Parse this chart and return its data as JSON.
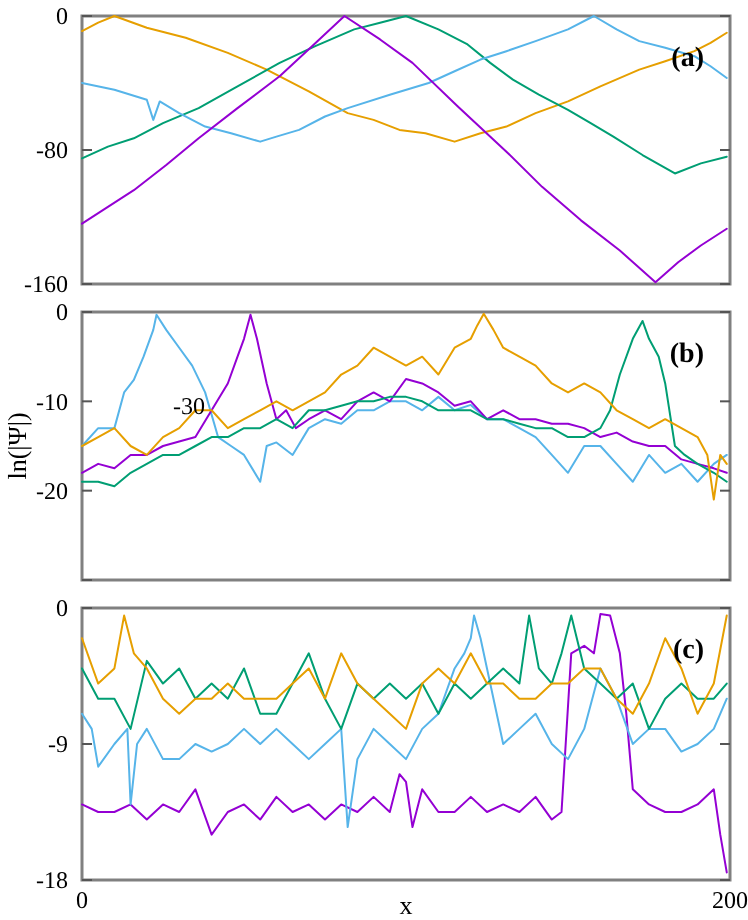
{
  "chart_data": [
    {
      "type": "line",
      "xlim": [
        0,
        200
      ],
      "ylim": [
        -160,
        0
      ],
      "yticks": [
        0,
        -80,
        -160
      ],
      "tick_labels": "y",
      "annotations": [
        "(a)"
      ],
      "series": [
        {
          "color": "#e69f00",
          "x": [
            0,
            5,
            10,
            20,
            32,
            45,
            57,
            70,
            82,
            90,
            98,
            106,
            115,
            123,
            131,
            140,
            150,
            160,
            172,
            180,
            189,
            194,
            199
          ],
          "values": [
            -9,
            -4,
            0,
            -7,
            -13,
            -22,
            -32,
            -45,
            -58,
            -62,
            -68,
            -70,
            -75,
            -70,
            -66,
            -58,
            -51,
            -42,
            -32,
            -27,
            -21,
            -16,
            -10
          ]
        },
        {
          "color": "#009e73",
          "x": [
            0,
            8,
            16,
            25,
            36,
            48,
            61,
            72,
            84,
            92,
            100,
            110,
            119,
            126,
            133,
            141,
            150,
            157,
            164,
            173,
            183,
            191,
            199
          ],
          "values": [
            -85,
            -78,
            -73,
            -64,
            -55,
            -42,
            -28,
            -18,
            -8,
            -4,
            0,
            -8,
            -17,
            -28,
            -38,
            -47,
            -56,
            -64,
            -72,
            -83,
            -94,
            -88,
            -84
          ]
        },
        {
          "color": "#56b4e9",
          "x": [
            0,
            10,
            20,
            22,
            24,
            30,
            38,
            46,
            55,
            60,
            67,
            75,
            82,
            95,
            107,
            115,
            123,
            131,
            140,
            150,
            158,
            165,
            172,
            180,
            189,
            194,
            199
          ],
          "values": [
            -40,
            -44,
            -50,
            -62,
            -51,
            -58,
            -66,
            -70,
            -75,
            -72,
            -68,
            -60,
            -55,
            -47,
            -40,
            -33,
            -26,
            -21,
            -15,
            -8,
            0,
            -8,
            -15,
            -19,
            -24,
            -30,
            -37
          ]
        },
        {
          "color": "#9400d3",
          "x": [
            0,
            8,
            16,
            26,
            36,
            48,
            61,
            71,
            81,
            92,
            102,
            116,
            131,
            142,
            154,
            166,
            177,
            184,
            191,
            199
          ],
          "values": [
            -124,
            -114,
            -104,
            -89,
            -73,
            -55,
            -36,
            -18,
            0,
            -14,
            -28,
            -54,
            -81,
            -102,
            -122,
            -140,
            -159,
            -147,
            -137,
            -127
          ]
        }
      ]
    },
    {
      "type": "line",
      "xlim": [
        0,
        200
      ],
      "ylim": [
        -30,
        0
      ],
      "yticks": [
        {
          "value": 0,
          "label": "0"
        },
        -10,
        -20,
        {
          "value": -30,
          "label": null
        }
      ],
      "tick_labels": "y",
      "ylabel": "ln(|Ψ|)",
      "annotations": [
        "(b)",
        {
          "text": "-30",
          "x": 33,
          "y": -10.5
        }
      ],
      "series": [
        {
          "color": "#56b4e9",
          "x": [
            0,
            5,
            10,
            13,
            16,
            19,
            22,
            23,
            26,
            30,
            34,
            38,
            42,
            46,
            50,
            55,
            57,
            60,
            65,
            70,
            75,
            80,
            85,
            90,
            95,
            100,
            105,
            110,
            115,
            120,
            125,
            130,
            135,
            140,
            145,
            150,
            155,
            160,
            165,
            170,
            175,
            180,
            185,
            190,
            195,
            199
          ],
          "values": [
            -15,
            -13,
            -13,
            -9,
            -7.6,
            -5,
            -2,
            -0.3,
            -2,
            -4,
            -6,
            -9,
            -14,
            -15,
            -16,
            -19,
            -15,
            -14.6,
            -16,
            -13,
            -12,
            -12.5,
            -11,
            -11,
            -10,
            -10,
            -11,
            -9.5,
            -11,
            -10.4,
            -12,
            -12,
            -13,
            -14,
            -16,
            -18,
            -15,
            -15,
            -17,
            -19,
            -16,
            -18,
            -17,
            -19,
            -17,
            -16
          ]
        },
        {
          "color": "#9400d3",
          "x": [
            0,
            5,
            10,
            15,
            20,
            25,
            30,
            35,
            40,
            45,
            48,
            50,
            52,
            54,
            57,
            60,
            63,
            66,
            70,
            75,
            80,
            85,
            90,
            95,
            100,
            105,
            110,
            115,
            120,
            125,
            130,
            135,
            140,
            145,
            150,
            155,
            160,
            165,
            170,
            175,
            180,
            185,
            190,
            195,
            199
          ],
          "values": [
            -18,
            -17,
            -17.5,
            -16,
            -16,
            -15,
            -14.5,
            -14,
            -11,
            -8,
            -5,
            -3,
            -0.3,
            -3,
            -8,
            -12,
            -11,
            -13,
            -12,
            -11,
            -12,
            -10,
            -9,
            -10,
            -7.5,
            -8,
            -9,
            -10.5,
            -10,
            -12,
            -11,
            -12,
            -12,
            -12.5,
            -12.5,
            -13,
            -14,
            -13.5,
            -14.5,
            -15,
            -15,
            -16.5,
            -17,
            -17.5,
            -18
          ]
        },
        {
          "color": "#009e73",
          "x": [
            0,
            5,
            10,
            15,
            20,
            25,
            30,
            35,
            40,
            45,
            50,
            55,
            60,
            65,
            70,
            75,
            80,
            85,
            90,
            95,
            100,
            105,
            110,
            115,
            120,
            125,
            130,
            135,
            140,
            145,
            150,
            155,
            160,
            163,
            166,
            170,
            173,
            175,
            178,
            180,
            183,
            186,
            190,
            195,
            199
          ],
          "values": [
            -19,
            -19,
            -19.5,
            -18,
            -17,
            -16,
            -16,
            -15,
            -14,
            -14,
            -13,
            -13,
            -12,
            -13,
            -11,
            -11,
            -10.5,
            -10,
            -10,
            -9.5,
            -9.5,
            -10,
            -11,
            -11,
            -11,
            -12,
            -12,
            -12.5,
            -13,
            -13,
            -14,
            -14,
            -13,
            -11,
            -7,
            -3,
            -1,
            -3,
            -5,
            -8,
            -15,
            -16,
            -17,
            -18,
            -19
          ]
        },
        {
          "color": "#e69f00",
          "x": [
            0,
            5,
            10,
            15,
            20,
            25,
            30,
            35,
            40,
            45,
            50,
            55,
            60,
            65,
            70,
            75,
            80,
            85,
            90,
            95,
            100,
            105,
            110,
            115,
            120,
            122,
            124,
            127,
            130,
            135,
            140,
            145,
            150,
            155,
            160,
            165,
            170,
            175,
            180,
            185,
            190,
            193,
            195,
            197,
            199
          ],
          "values": [
            -15,
            -14,
            -13,
            -15,
            -16,
            -14,
            -13,
            -11,
            -11,
            -13,
            -12,
            -11,
            -10,
            -11,
            -10,
            -9,
            -7,
            -6,
            -4,
            -5,
            -6,
            -5,
            -7,
            -4,
            -3,
            -1.5,
            -0.2,
            -2,
            -4,
            -5,
            -6,
            -8,
            -9,
            -8,
            -9,
            -11,
            -12,
            -13,
            -12,
            -13,
            -14,
            -16,
            -21,
            -16,
            -17
          ]
        }
      ]
    },
    {
      "type": "line",
      "xlim": [
        0,
        200
      ],
      "ylim": [
        -18,
        0
      ],
      "xticks": [
        0,
        200
      ],
      "yticks": [
        0,
        -9,
        -18
      ],
      "xlabel": "x",
      "annotations": [
        "(c)"
      ],
      "series": [
        {
          "color": "#9400d3",
          "x": [
            0,
            5,
            10,
            15,
            20,
            25,
            30,
            35,
            40,
            45,
            50,
            55,
            60,
            65,
            70,
            75,
            80,
            85,
            90,
            95,
            98,
            100,
            102,
            105,
            110,
            115,
            120,
            125,
            130,
            135,
            140,
            145,
            148,
            151,
            155,
            158,
            160,
            163,
            166,
            168,
            170,
            175,
            180,
            185,
            190,
            195,
            197,
            199
          ],
          "values": [
            -13,
            -13.5,
            -13.5,
            -13,
            -14,
            -13,
            -13.5,
            -12,
            -15,
            -13.5,
            -13,
            -14,
            -12.5,
            -13.5,
            -13,
            -14,
            -13,
            -13.5,
            -12.5,
            -13.5,
            -11,
            -11.5,
            -14.5,
            -12,
            -13.5,
            -13.5,
            -12.5,
            -13.5,
            -13,
            -13.5,
            -12.5,
            -14,
            -13.5,
            -3,
            -2.5,
            -3,
            -0.4,
            -0.5,
            -3,
            -7,
            -12,
            -13,
            -13.5,
            -13.5,
            -13,
            -12,
            -15,
            -17.5
          ]
        },
        {
          "color": "#56b4e9",
          "x": [
            0,
            3,
            5,
            10,
            14,
            15,
            17,
            20,
            25,
            30,
            35,
            40,
            45,
            50,
            55,
            60,
            65,
            70,
            75,
            80,
            82,
            85,
            90,
            95,
            100,
            105,
            110,
            115,
            118,
            120,
            121,
            123,
            125,
            130,
            135,
            140,
            145,
            150,
            155,
            160,
            165,
            170,
            175,
            180,
            185,
            190,
            195,
            199
          ],
          "values": [
            -7,
            -8,
            -10.5,
            -9,
            -8,
            -13,
            -9,
            -8,
            -10,
            -10,
            -9,
            -9.5,
            -9,
            -8,
            -9,
            -8,
            -9,
            -10,
            -9,
            -8,
            -14.5,
            -10,
            -8,
            -9,
            -10,
            -8,
            -7,
            -4,
            -3,
            -2,
            -0.5,
            -2,
            -4,
            -9,
            -8,
            -7,
            -9,
            -10,
            -8,
            -4,
            -6,
            -9,
            -8,
            -8,
            -9.5,
            -9,
            -8,
            -6
          ]
        },
        {
          "color": "#009e73",
          "x": [
            0,
            5,
            10,
            15,
            20,
            25,
            30,
            35,
            40,
            45,
            50,
            55,
            60,
            65,
            70,
            75,
            80,
            85,
            90,
            95,
            100,
            105,
            110,
            115,
            120,
            125,
            130,
            135,
            138,
            141,
            145,
            148,
            151,
            155,
            160,
            165,
            170,
            175,
            180,
            185,
            190,
            195,
            199
          ],
          "values": [
            -4,
            -6,
            -6,
            -8,
            -3.5,
            -5,
            -4,
            -6,
            -5,
            -6,
            -4,
            -7,
            -7,
            -5,
            -3,
            -6,
            -8,
            -5,
            -6,
            -5,
            -6,
            -5,
            -7,
            -5,
            -6,
            -5,
            -4,
            -5,
            -0.5,
            -4,
            -5,
            -3,
            -0.5,
            -4,
            -5,
            -6,
            -5,
            -8,
            -6,
            -5,
            -6,
            -6,
            -5
          ]
        },
        {
          "color": "#e69f00",
          "x": [
            0,
            5,
            10,
            13,
            16,
            20,
            25,
            30,
            35,
            40,
            45,
            50,
            55,
            60,
            65,
            70,
            75,
            80,
            85,
            90,
            95,
            100,
            105,
            110,
            115,
            120,
            125,
            130,
            135,
            140,
            145,
            150,
            155,
            160,
            165,
            170,
            175,
            180,
            185,
            190,
            195,
            199
          ],
          "values": [
            -2,
            -5,
            -4,
            -0.5,
            -3,
            -4,
            -6,
            -7,
            -6,
            -6,
            -5,
            -6,
            -6,
            -6,
            -5,
            -4,
            -6,
            -3,
            -5,
            -6,
            -7,
            -8,
            -5,
            -4,
            -5,
            -3,
            -5,
            -5,
            -6,
            -6,
            -5,
            -5,
            -4,
            -4,
            -6,
            -7,
            -5,
            -2,
            -4,
            -7,
            -5,
            -0.5
          ]
        }
      ]
    }
  ]
}
